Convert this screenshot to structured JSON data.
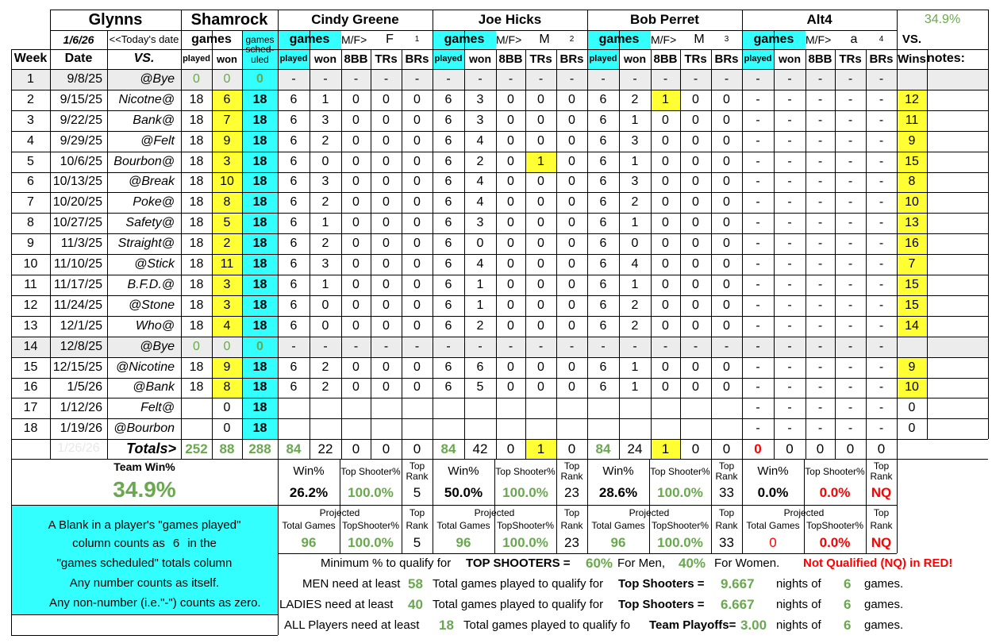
{
  "header": {
    "team_name": "Glynns",
    "venue": "Shamrock",
    "team_win_pct_top": "34.9%",
    "today_date": "1/6/26",
    "today_label": "<<Today's date",
    "games_label": "games",
    "games_scheduled_label": "games sched- uled",
    "played_label": "played",
    "won_label": "won",
    "week_label": "Week",
    "date_label": "Date",
    "vs_label": "VS.",
    "vs_wins_top": "VS.",
    "vs_wins_bottom": "Wins",
    "notes_label": "notes:",
    "mf_label": "M/F>",
    "col_8bb": "8BB",
    "col_trs": "TRs",
    "col_brs": "BRs"
  },
  "players": [
    {
      "name": "Cindy Greene",
      "mf": "F",
      "num": "1"
    },
    {
      "name": "Joe Hicks",
      "mf": "M",
      "num": "2"
    },
    {
      "name": "Bob Perret",
      "mf": "M",
      "num": "3"
    },
    {
      "name": "Alt4",
      "mf": "a",
      "num": "4"
    }
  ],
  "rows": [
    {
      "week": "1",
      "date": "9/8/25",
      "vs": "@Bye",
      "played": "0",
      "won": "0",
      "sched": "0",
      "bye": true,
      "p": [
        [
          "-",
          "-",
          "-",
          "-",
          "-"
        ],
        [
          "-",
          "-",
          "-",
          "-",
          "-"
        ],
        [
          "-",
          "-",
          "-",
          "-",
          "-"
        ],
        [
          "-",
          "-",
          "-",
          "-",
          "-"
        ]
      ],
      "vsw": ""
    },
    {
      "week": "2",
      "date": "9/15/25",
      "vs": "Nicotne@",
      "played": "18",
      "won": "6",
      "sched": "18",
      "p": [
        [
          "6",
          "1",
          "0",
          "0",
          "0"
        ],
        [
          "6",
          "3",
          "0",
          "0",
          "0"
        ],
        [
          "6",
          "2",
          "1",
          "0",
          "0"
        ],
        [
          "-",
          "-",
          "-",
          "-",
          "-"
        ]
      ],
      "vsw": "12"
    },
    {
      "week": "3",
      "date": "9/22/25",
      "vs": "Bank@",
      "played": "18",
      "won": "7",
      "sched": "18",
      "p": [
        [
          "6",
          "3",
          "0",
          "0",
          "0"
        ],
        [
          "6",
          "3",
          "0",
          "0",
          "0"
        ],
        [
          "6",
          "1",
          "0",
          "0",
          "0"
        ],
        [
          "-",
          "-",
          "-",
          "-",
          "-"
        ]
      ],
      "vsw": "11"
    },
    {
      "week": "4",
      "date": "9/29/25",
      "vs": "@Felt",
      "played": "18",
      "won": "9",
      "sched": "18",
      "p": [
        [
          "6",
          "2",
          "0",
          "0",
          "0"
        ],
        [
          "6",
          "4",
          "0",
          "0",
          "0"
        ],
        [
          "6",
          "3",
          "0",
          "0",
          "0"
        ],
        [
          "-",
          "-",
          "-",
          "-",
          "-"
        ]
      ],
      "vsw": "9"
    },
    {
      "week": "5",
      "date": "10/6/25",
      "vs": "Bourbon@",
      "played": "18",
      "won": "3",
      "sched": "18",
      "p": [
        [
          "6",
          "0",
          "0",
          "0",
          "0"
        ],
        [
          "6",
          "2",
          "0",
          "1",
          "0"
        ],
        [
          "6",
          "1",
          "0",
          "0",
          "0"
        ],
        [
          "-",
          "-",
          "-",
          "-",
          "-"
        ]
      ],
      "vsw": "15"
    },
    {
      "week": "6",
      "date": "10/13/25",
      "vs": "@Break",
      "played": "18",
      "won": "10",
      "sched": "18",
      "p": [
        [
          "6",
          "3",
          "0",
          "0",
          "0"
        ],
        [
          "6",
          "4",
          "0",
          "0",
          "0"
        ],
        [
          "6",
          "3",
          "0",
          "0",
          "0"
        ],
        [
          "-",
          "-",
          "-",
          "-",
          "-"
        ]
      ],
      "vsw": "8"
    },
    {
      "week": "7",
      "date": "10/20/25",
      "vs": "Poke@",
      "played": "18",
      "won": "8",
      "sched": "18",
      "p": [
        [
          "6",
          "2",
          "0",
          "0",
          "0"
        ],
        [
          "6",
          "4",
          "0",
          "0",
          "0"
        ],
        [
          "6",
          "2",
          "0",
          "0",
          "0"
        ],
        [
          "-",
          "-",
          "-",
          "-",
          "-"
        ]
      ],
      "vsw": "10"
    },
    {
      "week": "8",
      "date": "10/27/25",
      "vs": "Safety@",
      "played": "18",
      "won": "5",
      "sched": "18",
      "p": [
        [
          "6",
          "1",
          "0",
          "0",
          "0"
        ],
        [
          "6",
          "3",
          "0",
          "0",
          "0"
        ],
        [
          "6",
          "1",
          "0",
          "0",
          "0"
        ],
        [
          "-",
          "-",
          "-",
          "-",
          "-"
        ]
      ],
      "vsw": "13"
    },
    {
      "week": "9",
      "date": "11/3/25",
      "vs": "Straight@",
      "played": "18",
      "won": "2",
      "sched": "18",
      "p": [
        [
          "6",
          "2",
          "0",
          "0",
          "0"
        ],
        [
          "6",
          "0",
          "0",
          "0",
          "0"
        ],
        [
          "6",
          "0",
          "0",
          "0",
          "0"
        ],
        [
          "-",
          "-",
          "-",
          "-",
          "-"
        ]
      ],
      "vsw": "16"
    },
    {
      "week": "10",
      "date": "11/10/25",
      "vs": "@Stick",
      "played": "18",
      "won": "11",
      "sched": "18",
      "p": [
        [
          "6",
          "3",
          "0",
          "0",
          "0"
        ],
        [
          "6",
          "4",
          "0",
          "0",
          "0"
        ],
        [
          "6",
          "4",
          "0",
          "0",
          "0"
        ],
        [
          "-",
          "-",
          "-",
          "-",
          "-"
        ]
      ],
      "vsw": "7"
    },
    {
      "week": "11",
      "date": "11/17/25",
      "vs": "B.F.D.@",
      "played": "18",
      "won": "3",
      "sched": "18",
      "p": [
        [
          "6",
          "1",
          "0",
          "0",
          "0"
        ],
        [
          "6",
          "1",
          "0",
          "0",
          "0"
        ],
        [
          "6",
          "1",
          "0",
          "0",
          "0"
        ],
        [
          "-",
          "-",
          "-",
          "-",
          "-"
        ]
      ],
      "vsw": "15"
    },
    {
      "week": "12",
      "date": "11/24/25",
      "vs": "@Stone",
      "played": "18",
      "won": "3",
      "sched": "18",
      "p": [
        [
          "6",
          "0",
          "0",
          "0",
          "0"
        ],
        [
          "6",
          "1",
          "0",
          "0",
          "0"
        ],
        [
          "6",
          "2",
          "0",
          "0",
          "0"
        ],
        [
          "-",
          "-",
          "-",
          "-",
          "-"
        ]
      ],
      "vsw": "15"
    },
    {
      "week": "13",
      "date": "12/1/25",
      "vs": "Who@",
      "played": "18",
      "won": "4",
      "sched": "18",
      "p": [
        [
          "6",
          "0",
          "0",
          "0",
          "0"
        ],
        [
          "6",
          "2",
          "0",
          "0",
          "0"
        ],
        [
          "6",
          "2",
          "0",
          "0",
          "0"
        ],
        [
          "-",
          "-",
          "-",
          "-",
          "-"
        ]
      ],
      "vsw": "14"
    },
    {
      "week": "14",
      "date": "12/8/25",
      "vs": "@Bye",
      "played": "0",
      "won": "0",
      "sched": "0",
      "bye": true,
      "p": [
        [
          "-",
          "-",
          "-",
          "-",
          "-"
        ],
        [
          "-",
          "-",
          "-",
          "-",
          "-"
        ],
        [
          "-",
          "-",
          "-",
          "-",
          "-"
        ],
        [
          "-",
          "-",
          "-",
          "-",
          "-"
        ]
      ],
      "vsw": ""
    },
    {
      "week": "15",
      "date": "12/15/25",
      "vs": "@Nicotine",
      "played": "18",
      "won": "9",
      "sched": "18",
      "p": [
        [
          "6",
          "2",
          "0",
          "0",
          "0"
        ],
        [
          "6",
          "6",
          "0",
          "0",
          "0"
        ],
        [
          "6",
          "1",
          "0",
          "0",
          "0"
        ],
        [
          "-",
          "-",
          "-",
          "-",
          "-"
        ]
      ],
      "vsw": "9"
    },
    {
      "week": "16",
      "date": "1/5/26",
      "vs": "@Bank",
      "played": "18",
      "won": "8",
      "sched": "18",
      "p": [
        [
          "6",
          "2",
          "0",
          "0",
          "0"
        ],
        [
          "6",
          "5",
          "0",
          "0",
          "0"
        ],
        [
          "6",
          "1",
          "0",
          "0",
          "0"
        ],
        [
          "-",
          "-",
          "-",
          "-",
          "-"
        ]
      ],
      "vsw": "10"
    },
    {
      "week": "17",
      "date": "1/12/26",
      "vs": "Felt@",
      "played": "",
      "won": "0",
      "sched": "18",
      "p": [
        [
          "",
          "",
          "",
          "",
          ""
        ],
        [
          "",
          "",
          "",
          "",
          ""
        ],
        [
          "",
          "",
          "",
          "",
          ""
        ],
        [
          "-",
          "-",
          "-",
          "-",
          "-"
        ]
      ],
      "vsw": "0"
    },
    {
      "week": "18",
      "date": "1/19/26",
      "vs": "@Bourbon",
      "played": "",
      "won": "0",
      "sched": "18",
      "p": [
        [
          "",
          "",
          "",
          "",
          ""
        ],
        [
          "",
          "",
          "",
          "",
          ""
        ],
        [
          "",
          "",
          "",
          "",
          ""
        ],
        [
          "-",
          "-",
          "-",
          "-",
          "-"
        ]
      ],
      "vsw": "0"
    }
  ],
  "totals": {
    "ghost_date": "1/26/26",
    "label": "Totals>",
    "played": "252",
    "won": "88",
    "sched": "288",
    "p": [
      [
        "84",
        "22",
        "0",
        "0",
        "0"
      ],
      [
        "84",
        "42",
        "0",
        "1",
        "0"
      ],
      [
        "84",
        "24",
        "1",
        "0",
        "0"
      ],
      [
        "0",
        "0",
        "0",
        "0",
        "0"
      ]
    ]
  },
  "team_win": {
    "label": "Team Win%",
    "value": "34.9%"
  },
  "stats_labels": {
    "win_pct": "Win%",
    "top_shooter_pct": "Top Shooter%",
    "top_rank": "Top Rank",
    "projected": "Projected",
    "total_games": "Total Games",
    "top_shooter_pct2": "TopShooter%",
    "top": "Top",
    "rank": "Rank"
  },
  "stats": [
    {
      "win": "26.2%",
      "ts": "100.0%",
      "rank": "5",
      "proj_games": "96",
      "proj_ts": "100.0%",
      "proj_rank": "5"
    },
    {
      "win": "50.0%",
      "ts": "100.0%",
      "rank": "23",
      "proj_games": "96",
      "proj_ts": "100.0%",
      "proj_rank": "23"
    },
    {
      "win": "28.6%",
      "ts": "100.0%",
      "rank": "33",
      "proj_games": "96",
      "proj_ts": "100.0%",
      "proj_rank": "33"
    },
    {
      "win": "0.0%",
      "ts": "0.0%",
      "rank": "NQ",
      "proj_games": "0",
      "proj_ts": "0.0%",
      "proj_rank": "NQ"
    }
  ],
  "note": {
    "line1": "A Blank in a player's \"games played\"",
    "line2a": "column counts as",
    "line2b": "6",
    "line2c": "in the",
    "line3": "\"games scheduled\" totals column",
    "line4": "Any number counts as itself.",
    "line5": "Any non-number (i.e.\"-\") counts as zero."
  },
  "rules": {
    "min_prefix": "Minimum % to qualify for",
    "min_bold": "TOP SHOOTERS =",
    "men_pct": "60%",
    "for_men": "For Men,",
    "women_pct": "40%",
    "for_women": "For Women.",
    "nq": "Not Qualified (NQ) in RED!",
    "men_label": "MEN need at least",
    "men_games": "58",
    "ladies_label": "LADIES need at least",
    "ladies_games": "40",
    "all_label": "ALL Players need at least",
    "all_games": "18",
    "total_ts_text": "Total games played to qualify for",
    "total_po_text": "Total games played to qualify fo",
    "ts_bold": "Top Shooters =",
    "po_bold": "Team Playoffs=",
    "men_nights": "9.667",
    "ladies_nights": "6.667",
    "all_nights": "3.00",
    "nights_of": "nights of",
    "games_per": "6",
    "games_word": "games."
  }
}
